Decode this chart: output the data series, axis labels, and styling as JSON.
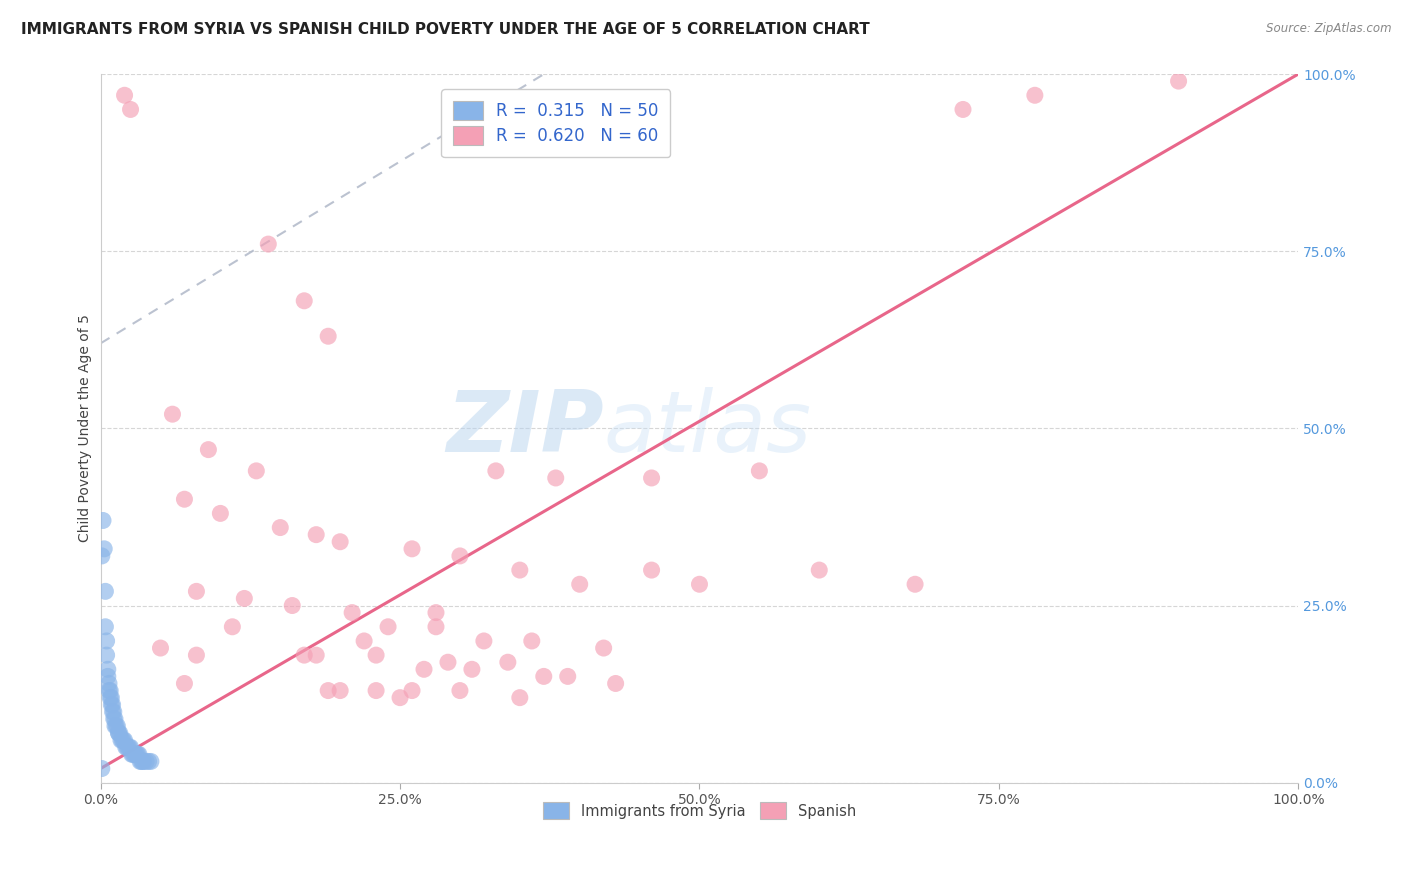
{
  "title": "IMMIGRANTS FROM SYRIA VS SPANISH CHILD POVERTY UNDER THE AGE OF 5 CORRELATION CHART",
  "source": "Source: ZipAtlas.com",
  "ylabel": "Child Poverty Under the Age of 5",
  "xlim": [
    0,
    1
  ],
  "ylim": [
    0,
    1
  ],
  "xticks": [
    0.0,
    0.25,
    0.5,
    0.75,
    1.0
  ],
  "yticks": [
    0.0,
    0.25,
    0.5,
    0.75,
    1.0
  ],
  "xticklabels": [
    "0.0%",
    "25.0%",
    "50.0%",
    "75.0%",
    "100.0%"
  ],
  "yticklabels": [
    "0.0%",
    "25.0%",
    "50.0%",
    "75.0%",
    "100.0%"
  ],
  "legend_r_blue": "R =  0.315",
  "legend_n_blue": "N = 50",
  "legend_r_pink": "R =  0.620",
  "legend_n_pink": "N = 60",
  "legend_label_blue": "Immigrants from Syria",
  "legend_label_pink": "Spanish",
  "blue_color": "#89b4e8",
  "pink_color": "#f4a0b5",
  "pink_line_color": "#e8668a",
  "gray_line_color": "#b0b8c8",
  "blue_scatter": [
    [
      0.002,
      0.37
    ],
    [
      0.003,
      0.33
    ],
    [
      0.004,
      0.27
    ],
    [
      0.004,
      0.22
    ],
    [
      0.005,
      0.2
    ],
    [
      0.005,
      0.18
    ],
    [
      0.006,
      0.16
    ],
    [
      0.006,
      0.15
    ],
    [
      0.007,
      0.14
    ],
    [
      0.007,
      0.13
    ],
    [
      0.008,
      0.13
    ],
    [
      0.008,
      0.12
    ],
    [
      0.009,
      0.12
    ],
    [
      0.009,
      0.11
    ],
    [
      0.01,
      0.11
    ],
    [
      0.01,
      0.1
    ],
    [
      0.011,
      0.1
    ],
    [
      0.011,
      0.09
    ],
    [
      0.012,
      0.09
    ],
    [
      0.012,
      0.08
    ],
    [
      0.013,
      0.08
    ],
    [
      0.014,
      0.08
    ],
    [
      0.015,
      0.07
    ],
    [
      0.015,
      0.07
    ],
    [
      0.016,
      0.07
    ],
    [
      0.017,
      0.06
    ],
    [
      0.018,
      0.06
    ],
    [
      0.019,
      0.06
    ],
    [
      0.02,
      0.06
    ],
    [
      0.021,
      0.05
    ],
    [
      0.022,
      0.05
    ],
    [
      0.023,
      0.05
    ],
    [
      0.024,
      0.05
    ],
    [
      0.025,
      0.05
    ],
    [
      0.026,
      0.04
    ],
    [
      0.027,
      0.04
    ],
    [
      0.028,
      0.04
    ],
    [
      0.029,
      0.04
    ],
    [
      0.03,
      0.04
    ],
    [
      0.031,
      0.04
    ],
    [
      0.032,
      0.04
    ],
    [
      0.033,
      0.03
    ],
    [
      0.034,
      0.03
    ],
    [
      0.035,
      0.03
    ],
    [
      0.036,
      0.03
    ],
    [
      0.038,
      0.03
    ],
    [
      0.04,
      0.03
    ],
    [
      0.042,
      0.03
    ],
    [
      0.001,
      0.32
    ],
    [
      0.001,
      0.02
    ]
  ],
  "pink_scatter": [
    [
      0.02,
      0.97
    ],
    [
      0.025,
      0.95
    ],
    [
      0.14,
      0.76
    ],
    [
      0.17,
      0.68
    ],
    [
      0.19,
      0.63
    ],
    [
      0.06,
      0.52
    ],
    [
      0.09,
      0.47
    ],
    [
      0.33,
      0.44
    ],
    [
      0.13,
      0.44
    ],
    [
      0.46,
      0.43
    ],
    [
      0.38,
      0.43
    ],
    [
      0.07,
      0.4
    ],
    [
      0.1,
      0.38
    ],
    [
      0.15,
      0.36
    ],
    [
      0.18,
      0.35
    ],
    [
      0.2,
      0.34
    ],
    [
      0.26,
      0.33
    ],
    [
      0.3,
      0.32
    ],
    [
      0.35,
      0.3
    ],
    [
      0.08,
      0.27
    ],
    [
      0.4,
      0.28
    ],
    [
      0.46,
      0.3
    ],
    [
      0.12,
      0.26
    ],
    [
      0.16,
      0.25
    ],
    [
      0.21,
      0.24
    ],
    [
      0.28,
      0.24
    ],
    [
      0.11,
      0.22
    ],
    [
      0.24,
      0.22
    ],
    [
      0.32,
      0.2
    ],
    [
      0.36,
      0.2
    ],
    [
      0.42,
      0.19
    ],
    [
      0.05,
      0.19
    ],
    [
      0.08,
      0.18
    ],
    [
      0.23,
      0.18
    ],
    [
      0.22,
      0.2
    ],
    [
      0.29,
      0.17
    ],
    [
      0.34,
      0.17
    ],
    [
      0.27,
      0.16
    ],
    [
      0.31,
      0.16
    ],
    [
      0.37,
      0.15
    ],
    [
      0.39,
      0.15
    ],
    [
      0.43,
      0.14
    ],
    [
      0.07,
      0.14
    ],
    [
      0.19,
      0.13
    ],
    [
      0.23,
      0.13
    ],
    [
      0.26,
      0.13
    ],
    [
      0.3,
      0.13
    ],
    [
      0.35,
      0.12
    ],
    [
      0.25,
      0.12
    ],
    [
      0.2,
      0.13
    ],
    [
      0.5,
      0.28
    ],
    [
      0.55,
      0.44
    ],
    [
      0.28,
      0.22
    ],
    [
      0.6,
      0.3
    ],
    [
      0.68,
      0.28
    ],
    [
      0.72,
      0.95
    ],
    [
      0.78,
      0.97
    ],
    [
      0.9,
      0.99
    ],
    [
      0.17,
      0.18
    ],
    [
      0.18,
      0.18
    ]
  ],
  "pink_line_x0": 0.0,
  "pink_line_y0": 0.02,
  "pink_line_x1": 1.0,
  "pink_line_y1": 1.0,
  "gray_line_x0": 0.0,
  "gray_line_y0": 0.62,
  "gray_line_x1": 0.38,
  "gray_line_y1": 1.01,
  "watermark_zip": "ZIP",
  "watermark_atlas": "atlas",
  "title_fontsize": 11,
  "axis_label_fontsize": 10,
  "tick_fontsize": 10
}
